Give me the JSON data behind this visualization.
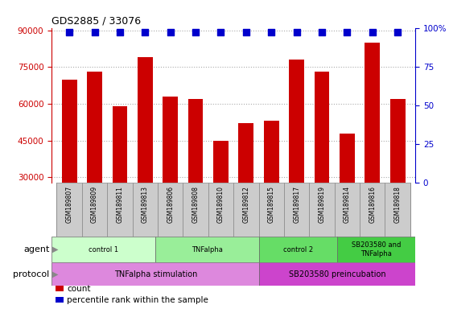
{
  "title": "GDS2885 / 33076",
  "samples": [
    "GSM189807",
    "GSM189809",
    "GSM189811",
    "GSM189813",
    "GSM189806",
    "GSM189808",
    "GSM189810",
    "GSM189812",
    "GSM189815",
    "GSM189817",
    "GSM189819",
    "GSM189814",
    "GSM189816",
    "GSM189818"
  ],
  "counts": [
    70000,
    73000,
    59000,
    79000,
    63000,
    62000,
    45000,
    52000,
    53000,
    78000,
    73000,
    48000,
    85000,
    62000
  ],
  "bar_color": "#cc0000",
  "percentile_color": "#0000cc",
  "ylim_left": [
    28000,
    91000
  ],
  "ylim_right": [
    0,
    100
  ],
  "yticks_left": [
    30000,
    45000,
    60000,
    75000,
    90000
  ],
  "yticks_right": [
    0,
    25,
    50,
    75,
    100
  ],
  "agent_groups": [
    {
      "label": "control 1",
      "start": 0,
      "end": 4,
      "color": "#ccffcc"
    },
    {
      "label": "TNFalpha",
      "start": 4,
      "end": 8,
      "color": "#99ee99"
    },
    {
      "label": "control 2",
      "start": 8,
      "end": 11,
      "color": "#66dd66"
    },
    {
      "label": "SB203580 and\nTNFalpha",
      "start": 11,
      "end": 14,
      "color": "#44cc44"
    }
  ],
  "protocol_groups": [
    {
      "label": "TNFalpha stimulation",
      "start": 0,
      "end": 8,
      "color": "#dd88dd"
    },
    {
      "label": "SB203580 preincubation",
      "start": 8,
      "end": 14,
      "color": "#cc44cc"
    }
  ],
  "legend_items": [
    {
      "color": "#cc0000",
      "label": "count"
    },
    {
      "color": "#0000cc",
      "label": "percentile rank within the sample"
    }
  ],
  "background_color": "#ffffff",
  "grid_color": "#aaaaaa",
  "sample_box_color": "#cccccc",
  "agent_label": "agent",
  "protocol_label": "protocol"
}
